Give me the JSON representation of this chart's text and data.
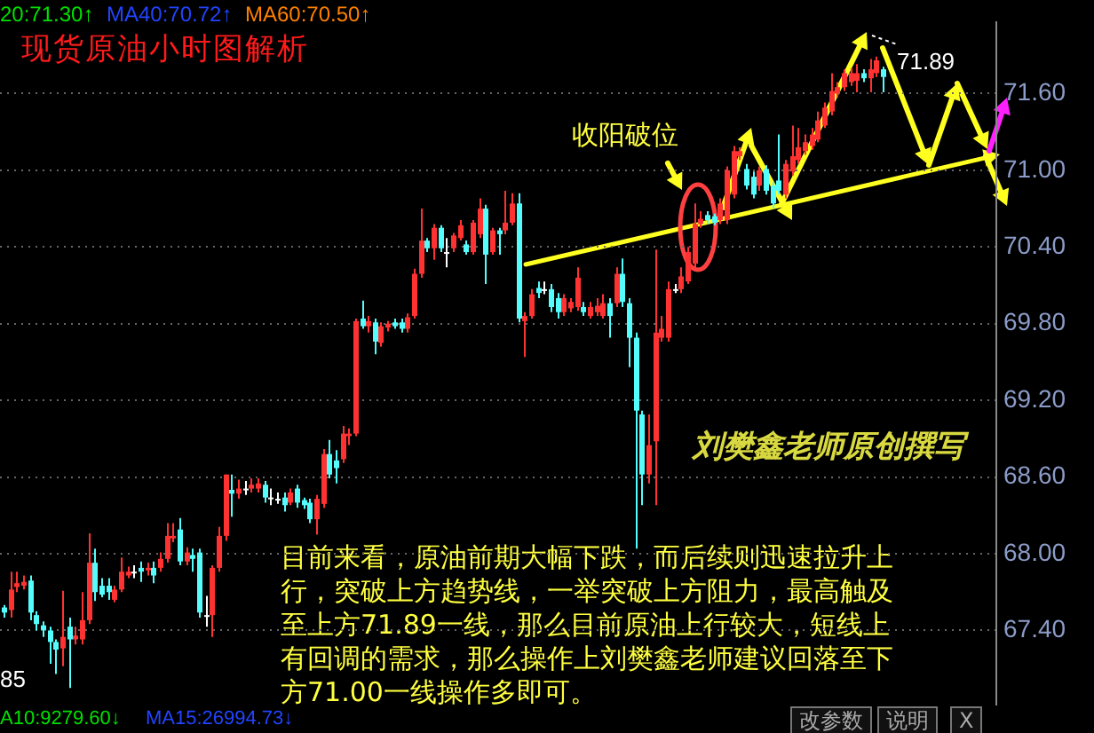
{
  "chart_data": {
    "type": "candlestick",
    "title": "现货原油小时图解析",
    "categories": [
      null,
      null,
      null,
      null,
      null,
      null,
      null,
      null,
      null,
      null,
      null,
      null,
      null,
      null,
      null,
      null,
      null,
      null,
      null,
      null,
      null,
      null,
      null,
      null,
      null,
      null,
      null,
      null,
      null,
      null,
      null,
      null,
      null,
      null,
      null,
      null,
      null,
      null,
      null,
      null,
      null,
      null,
      null,
      null,
      null,
      null,
      null,
      null,
      null,
      null,
      null,
      null,
      null,
      null,
      null,
      null,
      null,
      null,
      null,
      null,
      null,
      null,
      null,
      null,
      null,
      null,
      null,
      null,
      null,
      null,
      null,
      null,
      null,
      null,
      null,
      null,
      null,
      null,
      null,
      null,
      null,
      null,
      null,
      null,
      null,
      null,
      null,
      null,
      null,
      null,
      null,
      null,
      null,
      null,
      null,
      null,
      null,
      null,
      null,
      null,
      null,
      null,
      null,
      null,
      null,
      null,
      null,
      null,
      null,
      null,
      null,
      null,
      null,
      null,
      null,
      null,
      null,
      null,
      null,
      null,
      null,
      null,
      null,
      null,
      null,
      null,
      null,
      null,
      null,
      null,
      null,
      null,
      null,
      null,
      null,
      null,
      null,
      null,
      null,
      null,
      null,
      null,
      null,
      null,
      null,
      null,
      null,
      null,
      null,
      null,
      null,
      null,
      null
    ],
    "ohlc": [
      [
        67.58,
        67.6,
        67.5,
        67.54
      ],
      [
        67.56,
        67.86,
        67.5,
        67.72
      ],
      [
        67.74,
        67.86,
        67.7,
        67.77
      ],
      [
        67.75,
        67.83,
        67.72,
        67.78
      ],
      [
        67.79,
        67.83,
        67.48,
        67.54
      ],
      [
        67.52,
        67.55,
        67.4,
        67.45
      ],
      [
        67.44,
        67.47,
        67.35,
        67.4
      ],
      [
        67.4,
        67.43,
        67.14,
        67.31
      ],
      [
        67.31,
        67.33,
        67.06,
        67.25
      ],
      [
        67.26,
        67.71,
        67.12,
        67.35
      ],
      [
        67.43,
        67.5,
        66.95,
        67.33
      ],
      [
        67.33,
        67.43,
        67.29,
        67.36
      ],
      [
        67.33,
        67.7,
        67.29,
        67.48
      ],
      [
        67.48,
        68.16,
        67.45,
        67.93
      ],
      [
        67.93,
        68.04,
        67.63,
        67.7
      ],
      [
        67.75,
        67.81,
        67.66,
        67.68
      ],
      [
        67.75,
        67.81,
        67.64,
        67.7
      ],
      [
        67.64,
        67.75,
        67.62,
        67.72
      ],
      [
        67.72,
        67.97,
        67.7,
        67.86
      ],
      [
        67.83,
        67.9,
        67.81,
        67.86
      ],
      [
        67.86,
        67.91,
        67.81,
        67.86
      ],
      [
        67.89,
        67.94,
        67.78,
        67.86
      ],
      [
        67.87,
        67.93,
        67.83,
        67.89
      ],
      [
        67.89,
        67.94,
        67.77,
        67.83
      ],
      [
        67.89,
        68.01,
        67.86,
        67.96
      ],
      [
        67.96,
        68.24,
        67.93,
        68.14
      ],
      [
        68.12,
        68.24,
        68.09,
        68.14
      ],
      [
        68.19,
        68.28,
        67.91,
        67.94
      ],
      [
        67.94,
        68.05,
        67.91,
        68.01
      ],
      [
        67.99,
        68.04,
        67.86,
        67.96
      ],
      [
        68.01,
        68.04,
        67.5,
        67.54
      ],
      [
        67.52,
        67.67,
        67.43,
        67.52
      ],
      [
        67.52,
        67.91,
        67.35,
        67.89
      ],
      [
        67.89,
        68.21,
        67.86,
        68.14
      ],
      [
        68.14,
        68.62,
        68.1,
        68.62
      ],
      [
        68.5,
        68.62,
        68.29,
        68.47
      ],
      [
        68.47,
        68.58,
        68.43,
        68.51
      ],
      [
        68.51,
        68.57,
        68.46,
        68.51
      ],
      [
        68.51,
        68.59,
        68.48,
        68.54
      ],
      [
        68.51,
        68.59,
        68.48,
        68.55
      ],
      [
        68.54,
        68.57,
        68.4,
        68.44
      ],
      [
        68.44,
        68.51,
        68.38,
        68.44
      ],
      [
        68.43,
        68.48,
        68.39,
        68.43
      ],
      [
        68.44,
        68.48,
        68.33,
        68.38
      ],
      [
        68.4,
        68.51,
        68.38,
        68.48
      ],
      [
        68.51,
        68.54,
        68.36,
        68.4
      ],
      [
        68.42,
        68.44,
        68.35,
        68.38
      ],
      [
        68.4,
        68.43,
        68.24,
        68.27
      ],
      [
        68.27,
        68.46,
        68.15,
        68.43
      ],
      [
        68.39,
        68.82,
        68.36,
        68.78
      ],
      [
        68.78,
        68.89,
        68.59,
        68.62
      ],
      [
        68.73,
        68.81,
        68.55,
        68.67
      ],
      [
        68.74,
        69.0,
        68.71,
        68.94
      ],
      [
        68.92,
        68.98,
        68.85,
        68.94
      ],
      [
        68.94,
        69.84,
        68.92,
        69.82
      ],
      [
        69.84,
        69.98,
        69.76,
        69.78
      ],
      [
        69.78,
        69.86,
        69.73,
        69.82
      ],
      [
        69.81,
        69.84,
        69.56,
        69.66
      ],
      [
        69.65,
        69.81,
        69.62,
        69.78
      ],
      [
        69.77,
        69.82,
        69.74,
        69.8
      ],
      [
        69.81,
        69.84,
        69.76,
        69.78
      ],
      [
        69.81,
        69.84,
        69.73,
        69.76
      ],
      [
        69.76,
        69.88,
        69.73,
        69.85
      ],
      [
        69.86,
        70.23,
        69.84,
        70.19
      ],
      [
        70.19,
        70.7,
        70.16,
        70.45
      ],
      [
        70.45,
        70.47,
        70.36,
        70.39
      ],
      [
        70.39,
        70.58,
        70.3,
        70.55
      ],
      [
        70.55,
        70.57,
        70.36,
        70.39
      ],
      [
        70.36,
        70.47,
        70.24,
        70.36
      ],
      [
        70.39,
        70.51,
        70.36,
        70.49
      ],
      [
        70.47,
        70.61,
        70.45,
        70.57
      ],
      [
        70.42,
        70.45,
        70.34,
        70.36
      ],
      [
        70.36,
        70.61,
        70.34,
        70.59
      ],
      [
        70.5,
        70.78,
        70.47,
        70.7
      ],
      [
        70.7,
        70.73,
        70.11,
        70.34
      ],
      [
        70.36,
        70.55,
        70.34,
        70.53
      ],
      [
        70.53,
        70.55,
        70.34,
        70.5
      ],
      [
        70.53,
        70.84,
        70.5,
        70.59
      ],
      [
        70.59,
        70.82,
        70.57,
        70.74
      ],
      [
        70.74,
        70.82,
        69.81,
        69.84
      ],
      [
        69.82,
        69.89,
        69.54,
        69.86
      ],
      [
        69.86,
        70.07,
        69.84,
        70.03
      ],
      [
        70.08,
        70.13,
        70.0,
        70.04
      ],
      [
        70.07,
        70.13,
        70.03,
        70.07
      ],
      [
        70.07,
        70.11,
        69.89,
        69.93
      ],
      [
        70.0,
        70.04,
        69.84,
        69.89
      ],
      [
        69.89,
        70.03,
        69.86,
        70.0
      ],
      [
        69.92,
        70.0,
        69.89,
        69.97
      ],
      [
        69.93,
        70.24,
        69.9,
        70.16
      ],
      [
        69.93,
        69.97,
        69.86,
        69.89
      ],
      [
        69.86,
        69.97,
        69.84,
        69.93
      ],
      [
        69.89,
        70.0,
        69.86,
        69.94
      ],
      [
        69.86,
        70.03,
        69.84,
        69.96
      ],
      [
        69.96,
        70.0,
        69.69,
        69.86
      ],
      [
        69.96,
        70.24,
        69.93,
        70.19
      ],
      [
        70.19,
        70.31,
        69.93,
        69.97
      ],
      [
        69.96,
        70.0,
        69.46,
        69.69
      ],
      [
        69.69,
        69.73,
        68.04,
        69.12
      ],
      [
        69.09,
        69.12,
        68.38,
        68.62
      ],
      [
        68.62,
        69.09,
        68.55,
        68.85
      ],
      [
        68.88,
        70.38,
        68.38,
        69.73
      ],
      [
        69.69,
        69.86,
        69.66,
        69.76
      ],
      [
        69.69,
        70.13,
        69.66,
        70.07
      ],
      [
        70.07,
        70.11,
        70.04,
        70.07
      ],
      [
        70.07,
        70.24,
        70.04,
        70.17
      ],
      [
        70.13,
        70.4,
        70.11,
        70.36
      ],
      [
        70.27,
        70.74,
        70.24,
        70.58
      ],
      [
        70.58,
        70.68,
        70.55,
        70.62
      ],
      [
        70.65,
        70.68,
        70.58,
        70.61
      ],
      [
        70.64,
        70.66,
        70.57,
        70.59
      ],
      [
        70.61,
        70.78,
        70.58,
        70.74
      ],
      [
        70.61,
        71.03,
        70.58,
        71.0
      ],
      [
        70.81,
        71.19,
        70.78,
        71.15
      ],
      [
        71.11,
        71.18,
        71.08,
        71.15
      ],
      [
        71.01,
        71.05,
        70.85,
        70.88
      ],
      [
        70.95,
        70.99,
        70.78,
        70.81
      ],
      [
        70.88,
        71.03,
        70.84,
        71.0
      ],
      [
        71.01,
        71.04,
        70.81,
        70.84
      ],
      [
        70.88,
        70.91,
        70.7,
        70.74
      ],
      [
        70.92,
        71.28,
        70.81,
        70.84
      ],
      [
        70.81,
        71.08,
        70.78,
        71.05
      ],
      [
        70.99,
        71.35,
        70.96,
        71.11
      ],
      [
        71.08,
        71.33,
        71.05,
        71.18
      ],
      [
        71.15,
        71.28,
        71.12,
        71.22
      ],
      [
        71.19,
        71.33,
        71.16,
        71.28
      ],
      [
        71.24,
        71.46,
        71.22,
        71.39
      ],
      [
        71.35,
        71.53,
        71.33,
        71.49
      ],
      [
        71.46,
        71.76,
        71.43,
        71.62
      ],
      [
        71.6,
        71.69,
        71.57,
        71.65
      ],
      [
        71.65,
        71.79,
        71.62,
        71.76
      ],
      [
        71.69,
        71.8,
        71.66,
        71.76
      ],
      [
        71.7,
        71.83,
        71.61,
        71.76
      ],
      [
        71.76,
        71.79,
        71.69,
        71.72
      ],
      [
        71.72,
        71.87,
        71.61,
        71.79
      ],
      [
        71.76,
        71.89,
        71.73,
        71.86
      ],
      [
        71.79,
        71.81,
        71.61,
        71.73
      ],
      null,
      null,
      null,
      null,
      null,
      null,
      null,
      null,
      null,
      null,
      null,
      null,
      null,
      null,
      null,
      null,
      null
    ],
    "colors": [
      "#54fcfc",
      "#ff3232",
      "#ff3232",
      "#ff3232",
      "#54fcfc",
      "#54fcfc",
      "#54fcfc",
      "#54fcfc",
      "#54fcfc",
      "#ff3232",
      "#54fcfc",
      "#ff3232",
      "#ff3232",
      "#ff3232",
      "#54fcfc",
      "#54fcfc",
      "#54fcfc",
      "#ff3232",
      "#ff3232",
      "#ff3232",
      "#ffffff",
      "#54fcfc",
      "#ff3232",
      "#54fcfc",
      "#ff3232",
      "#ff3232",
      "#ff3232",
      "#54fcfc",
      "#ff3232",
      "#54fcfc",
      "#54fcfc",
      "#ffffff",
      "#ff3232",
      "#ff3232",
      "#ff3232",
      "#54fcfc",
      "#ff3232",
      "#ffffff",
      "#ff3232",
      "#ff3232",
      "#54fcfc",
      "#ffffff",
      "#ffffff",
      "#54fcfc",
      "#ff3232",
      "#54fcfc",
      "#54fcfc",
      "#54fcfc",
      "#ff3232",
      "#ff3232",
      "#54fcfc",
      "#54fcfc",
      "#ff3232",
      "#ff3232",
      "#ff3232",
      "#54fcfc",
      "#ff3232",
      "#54fcfc",
      "#ff3232",
      "#ff3232",
      "#54fcfc",
      "#54fcfc",
      "#ff3232",
      "#ff3232",
      "#ff3232",
      "#54fcfc",
      "#ff3232",
      "#54fcfc",
      "#ffffff",
      "#ff3232",
      "#ff3232",
      "#54fcfc",
      "#ff3232",
      "#ff3232",
      "#54fcfc",
      "#ff3232",
      "#54fcfc",
      "#ff3232",
      "#ff3232",
      "#54fcfc",
      "#ff3232",
      "#ff3232",
      "#54fcfc",
      "#ffffff",
      "#54fcfc",
      "#54fcfc",
      "#ff3232",
      "#ff3232",
      "#ff3232",
      "#54fcfc",
      "#ff3232",
      "#ff3232",
      "#ff3232",
      "#54fcfc",
      "#ff3232",
      "#54fcfc",
      "#54fcfc",
      "#54fcfc",
      "#54fcfc",
      "#ff3232",
      "#ff3232",
      "#ff3232",
      "#ff3232",
      "#ffffff",
      "#ff3232",
      "#ff3232",
      "#ff3232",
      "#ff3232",
      "#54fcfc",
      "#54fcfc",
      "#ff3232",
      "#ff3232",
      "#ff3232",
      "#ff3232",
      "#54fcfc",
      "#54fcfc",
      "#ff3232",
      "#54fcfc",
      "#54fcfc",
      "#54fcfc",
      "#ff3232",
      "#ff3232",
      "#ff3232",
      "#ff3232",
      "#ff3232",
      "#ff3232",
      "#ff3232",
      "#ff3232",
      "#ff3232",
      "#ff3232",
      "#ff3232",
      "#ff3232",
      "#54fcfc",
      "#ff3232",
      "#ff3232",
      "#54fcfc",
      null,
      null,
      null,
      null,
      null,
      null,
      null,
      null,
      null,
      null,
      null,
      null,
      null,
      null,
      null,
      null,
      null
    ],
    "ylim": [
      66.82,
      72.16
    ],
    "yticks": [
      {
        "value": 67.4,
        "label": "67.40"
      },
      {
        "value": 68.0,
        "label": "68.00"
      },
      {
        "value": 68.6,
        "label": "68.60"
      },
      {
        "value": 69.2,
        "label": "69.20"
      },
      {
        "value": 69.8,
        "label": "69.80"
      },
      {
        "value": 70.4,
        "label": "70.40"
      },
      {
        "value": 71.0,
        "label": "71.00"
      },
      {
        "value": 71.6,
        "label": "71.60"
      }
    ],
    "grid": "y",
    "tick_labels": "y",
    "annotations": [
      "20:71.30↑",
      "MA40:70.72↑",
      "MA60:70.50↑",
      "收阳破位",
      "71.89",
      "刘樊鑫老师原创撰写",
      "目前来看，原油前期大幅下跌，而后续则迅速拉升上行，突破上方趋势线，一举突破上方阻力，最高触及至上方71.89一线，那么目前原油上行较大，短线上有回调的需求，那么操作上刘樊鑫老师建议回落至下方71.00一线操作多即可。",
      "85",
      "A10:9279.60↓",
      "MA15:26994.73↓",
      "改参数",
      "说明",
      "X"
    ]
  }
}
